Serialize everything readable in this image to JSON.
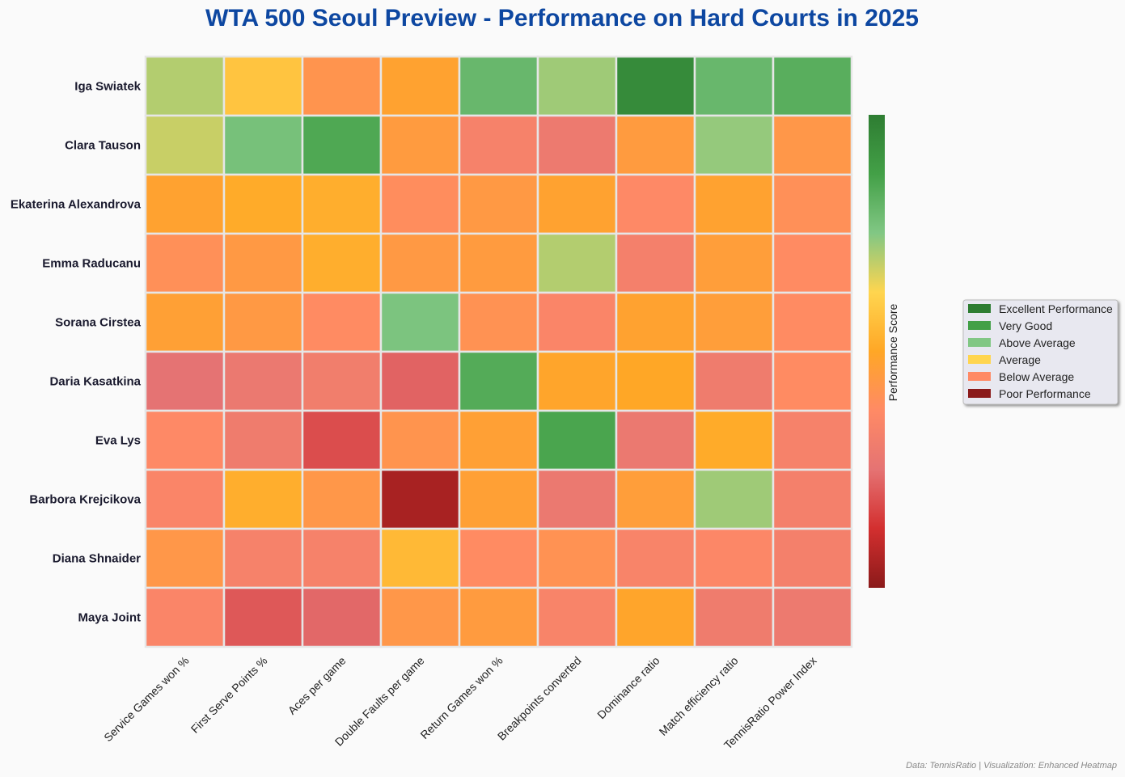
{
  "chart_data": {
    "type": "heatmap",
    "title": "WTA 500 Seoul Preview - Performance on Hard Courts in 2025",
    "rows": [
      "Iga Swiatek",
      "Clara Tauson",
      "Ekaterina Alexandrova",
      "Emma Raducanu",
      "Sorana Cirstea",
      "Daria Kasatkina",
      "Eva Lys",
      "Barbora Krejcikova",
      "Diana Shnaider",
      "Maya Joint"
    ],
    "columns": [
      "Service Games won %",
      "First Serve Points %",
      "Aces per game",
      "Double Faults per game",
      "Return Games won %",
      "Breakpoints converted",
      "Dominance ratio",
      "Match efficiency ratio",
      "TennisRatio Power Index"
    ],
    "values": [
      [
        0.7,
        0.58,
        0.42,
        0.48,
        0.8,
        0.72,
        0.95,
        0.8,
        0.83
      ],
      [
        0.68,
        0.77,
        0.85,
        0.45,
        0.33,
        0.29,
        0.45,
        0.73,
        0.43
      ],
      [
        0.48,
        0.51,
        0.52,
        0.39,
        0.44,
        0.48,
        0.37,
        0.48,
        0.4
      ],
      [
        0.4,
        0.44,
        0.52,
        0.44,
        0.45,
        0.7,
        0.32,
        0.46,
        0.38
      ],
      [
        0.47,
        0.44,
        0.38,
        0.76,
        0.41,
        0.35,
        0.48,
        0.46,
        0.38
      ],
      [
        0.25,
        0.28,
        0.31,
        0.22,
        0.84,
        0.49,
        0.5,
        0.3,
        0.38
      ],
      [
        0.37,
        0.3,
        0.18,
        0.42,
        0.47,
        0.86,
        0.28,
        0.51,
        0.33
      ],
      [
        0.35,
        0.52,
        0.43,
        0.05,
        0.47,
        0.28,
        0.46,
        0.72,
        0.32
      ],
      [
        0.43,
        0.33,
        0.33,
        0.55,
        0.38,
        0.41,
        0.34,
        0.36,
        0.32
      ],
      [
        0.35,
        0.2,
        0.23,
        0.43,
        0.45,
        0.34,
        0.49,
        0.3,
        0.29
      ]
    ],
    "colorbar_label": "Performance Score",
    "colormap": [
      "#8b1a1a",
      "#d32f2f",
      "#e57373",
      "#ff8a65",
      "#ffa726",
      "#ffd54f",
      "#81c784",
      "#43a047",
      "#2e7d32"
    ],
    "legend": {
      "placement": "right",
      "items": [
        {
          "label": "Excellent Performance",
          "color": "#2e7d32"
        },
        {
          "label": "Very Good",
          "color": "#43a047"
        },
        {
          "label": "Above Average",
          "color": "#81c784"
        },
        {
          "label": "Average",
          "color": "#ffd54f"
        },
        {
          "label": "Below Average",
          "color": "#ff8a65"
        },
        {
          "label": "Poor Performance",
          "color": "#8b1a1a"
        }
      ]
    },
    "footer": "Data: TennisRatio | Visualization: Enhanced Heatmap"
  }
}
